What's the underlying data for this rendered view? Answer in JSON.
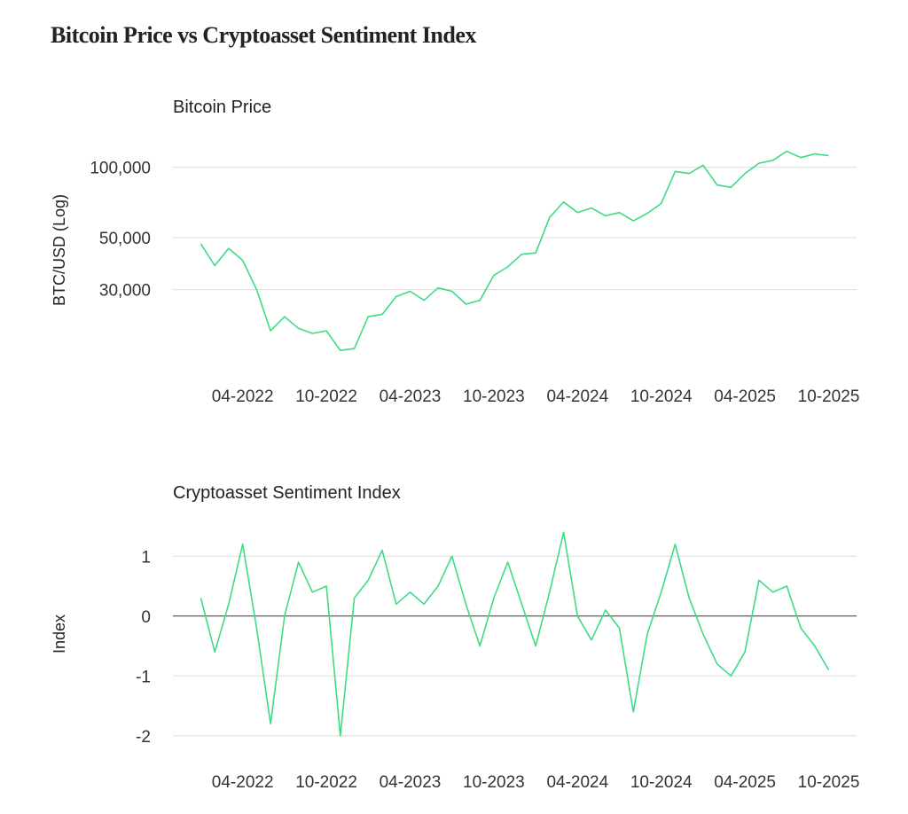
{
  "title": "Bitcoin Price vs Cryptoasset Sentiment Index",
  "chart_data": [
    {
      "type": "line",
      "title": "Bitcoin Price",
      "y_label": "BTC/USD (Log)",
      "log_scale": true,
      "grid": true,
      "x": [
        "01-2022",
        "02-2022",
        "03-2022",
        "04-2022",
        "05-2022",
        "06-2022",
        "07-2022",
        "08-2022",
        "09-2022",
        "10-2022",
        "11-2022",
        "12-2022",
        "01-2023",
        "02-2023",
        "03-2023",
        "04-2023",
        "05-2023",
        "06-2023",
        "07-2023",
        "08-2023",
        "09-2023",
        "10-2023",
        "11-2023",
        "12-2023",
        "01-2024",
        "02-2024",
        "03-2024",
        "04-2024",
        "05-2024",
        "06-2024",
        "07-2024",
        "08-2024",
        "09-2024",
        "10-2024",
        "11-2024",
        "12-2024",
        "01-2025",
        "02-2025",
        "03-2025",
        "04-2025",
        "05-2025",
        "06-2025",
        "07-2025",
        "08-2025",
        "09-2025",
        "10-2025"
      ],
      "series": [
        {
          "color": "#3ddc84",
          "values": [
            47000,
            38000,
            45000,
            40000,
            30000,
            20000,
            23000,
            20500,
            19500,
            20000,
            16500,
            16800,
            23000,
            23500,
            28000,
            29500,
            27000,
            30500,
            29500,
            26000,
            27000,
            34500,
            37500,
            42500,
            43000,
            61000,
            71000,
            64000,
            67000,
            62000,
            64000,
            59000,
            63500,
            70000,
            96000,
            94000,
            102000,
            84000,
            82000,
            94000,
            104000,
            107000,
            117000,
            110000,
            114000,
            112000
          ]
        }
      ],
      "xlim": [
        "11-2021",
        "12-2025"
      ],
      "xticks": [
        "04-2022",
        "10-2022",
        "04-2023",
        "10-2023",
        "04-2024",
        "10-2024",
        "04-2025",
        "10-2025"
      ],
      "ylim": [
        14000,
        140000
      ],
      "yticks": [
        {
          "value": 30000,
          "label": "30,000"
        },
        {
          "value": 50000,
          "label": "50,000"
        },
        {
          "value": 100000,
          "label": "100,000"
        }
      ]
    },
    {
      "type": "line",
      "title": "Cryptoasset Sentiment Index",
      "y_label": "Index",
      "log_scale": false,
      "grid": true,
      "zero_line": true,
      "x": [
        "01-2022",
        "02-2022",
        "03-2022",
        "04-2022",
        "05-2022",
        "06-2022",
        "07-2022",
        "08-2022",
        "09-2022",
        "10-2022",
        "11-2022",
        "12-2022",
        "01-2023",
        "02-2023",
        "03-2023",
        "04-2023",
        "05-2023",
        "06-2023",
        "07-2023",
        "08-2023",
        "09-2023",
        "10-2023",
        "11-2023",
        "12-2023",
        "01-2024",
        "02-2024",
        "03-2024",
        "04-2024",
        "05-2024",
        "06-2024",
        "07-2024",
        "08-2024",
        "09-2024",
        "10-2024",
        "11-2024",
        "12-2024",
        "01-2025",
        "02-2025",
        "03-2025",
        "04-2025",
        "05-2025",
        "06-2025",
        "07-2025",
        "08-2025",
        "09-2025",
        "10-2025"
      ],
      "series": [
        {
          "color": "#3ddc84",
          "values": [
            0.3,
            -0.6,
            0.2,
            1.2,
            -0.2,
            -1.8,
            0.0,
            0.9,
            0.4,
            0.5,
            -2.0,
            0.3,
            0.6,
            1.1,
            0.2,
            0.4,
            0.2,
            0.5,
            1.0,
            0.2,
            -0.5,
            0.3,
            0.9,
            0.2,
            -0.5,
            0.4,
            1.4,
            0.0,
            -0.4,
            0.1,
            -0.2,
            -1.6,
            -0.3,
            0.4,
            1.2,
            0.3,
            -0.3,
            -0.8,
            -1.0,
            -0.6,
            0.6,
            0.4,
            0.5,
            -0.2,
            -0.5,
            -0.9
          ]
        }
      ],
      "xlim": [
        "11-2021",
        "12-2025"
      ],
      "xticks": [
        "04-2022",
        "10-2022",
        "04-2023",
        "10-2023",
        "04-2024",
        "10-2024",
        "04-2025",
        "10-2025"
      ],
      "ylim": [
        -2.3,
        1.7
      ],
      "yticks": [
        -2,
        -1,
        0,
        1
      ]
    }
  ]
}
